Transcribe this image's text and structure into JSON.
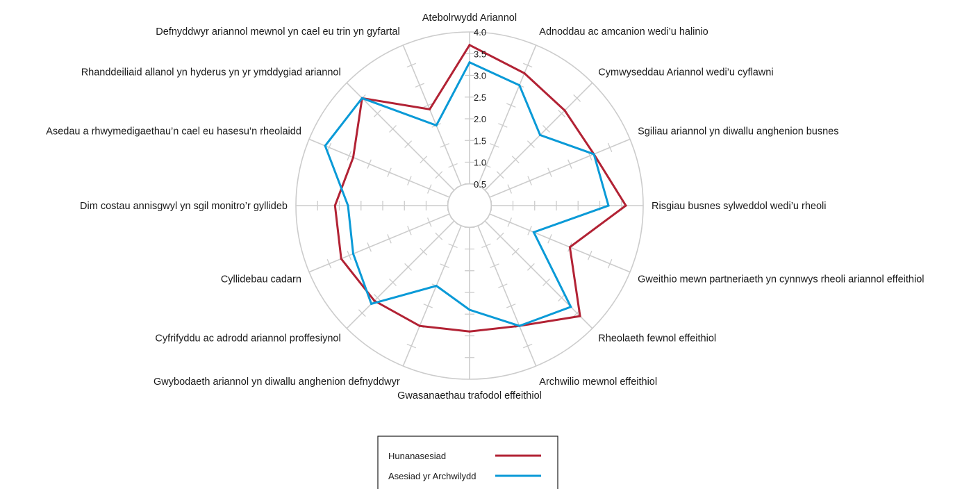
{
  "chart_data": {
    "type": "radar",
    "categories": [
      "Atebolrwydd Ariannol",
      "Adnoddau ac amcanion wedi’u halinio",
      "Cymwyseddau Ariannol wedi’u cyflawni",
      "Sgiliau ariannol yn diwallu anghenion busnes",
      "Risgiau busnes sylweddol wedi’u rheoli",
      "Gweithio mewn partneriaeth yn cynnwys rheoli ariannol effeithiol",
      "Rheolaeth fewnol effeithiol",
      "Archwilio mewnol effeithiol",
      "Gwasanaethau trafodol effeithiol",
      "Gwybodaeth ariannol yn diwallu anghenion defnyddwyr",
      "Cyfrifyddu ac adrodd ariannol proffesiynol",
      "Cyllidebau cadarn",
      "Dim costau annisgwyl yn sgil monitro’r gyllideb",
      "Asedau a rhwymedigaethau’n cael eu hasesu’n rheolaidd",
      "Rhanddeiliaid allanol yn hyderus yn yr ymddygiad ariannol",
      "Defnyddwyr ariannol mewnol yn cael eu trin yn gyfartal"
    ],
    "ticks": [
      "0.5",
      "1.0",
      "1.5",
      "2.0",
      "2.5",
      "3.0",
      "3.5",
      "4.0"
    ],
    "rlim": [
      0,
      4.0
    ],
    "series": [
      {
        "name": "Hunanasesiad",
        "color": "#b22234",
        "values": [
          3.7,
          3.3,
          3.1,
          3.1,
          3.6,
          2.5,
          3.6,
          3.0,
          2.9,
          3.0,
          3.1,
          3.2,
          3.1,
          2.9,
          3.5,
          2.4
        ]
      },
      {
        "name": "Asesiad yr Archwilydd",
        "color": "#0a9ad7",
        "values": [
          3.3,
          3.0,
          2.3,
          3.1,
          3.2,
          1.6,
          3.3,
          3.0,
          2.4,
          2.0,
          3.2,
          2.9,
          2.8,
          3.6,
          3.5,
          2.0
        ]
      }
    ],
    "grid": true,
    "legend_position": "bottom"
  }
}
